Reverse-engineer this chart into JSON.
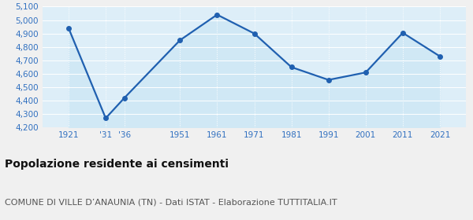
{
  "years": [
    1921,
    1931,
    1936,
    1951,
    1961,
    1971,
    1981,
    1991,
    2001,
    2011,
    2021
  ],
  "population": [
    4940,
    4270,
    4420,
    4850,
    5040,
    4900,
    4650,
    4555,
    4610,
    4905,
    4730
  ],
  "x_labels": [
    "1921",
    "'31",
    "'36",
    "1951",
    "1961",
    "1971",
    "1981",
    "1991",
    "2001",
    "2011",
    "2021"
  ],
  "ylim": [
    4200,
    5100
  ],
  "yticks": [
    4200,
    4300,
    4400,
    4500,
    4600,
    4700,
    4800,
    4900,
    5000,
    5100
  ],
  "line_color": "#2060b0",
  "fill_color": "#d0e8f5",
  "marker_color": "#2060b0",
  "plot_bg_color": "#ddeef8",
  "fig_bg_color": "#f0f0f0",
  "grid_color": "#ffffff",
  "tick_label_color": "#3070c0",
  "title": "Popolazione residente ai censimenti",
  "subtitle": "COMUNE DI VILLE D’ANAUNIA (TN) - Dati ISTAT - Elaborazione TUTTITALIA.IT",
  "title_fontsize": 10,
  "subtitle_fontsize": 8,
  "marker_size": 4,
  "line_width": 1.6
}
